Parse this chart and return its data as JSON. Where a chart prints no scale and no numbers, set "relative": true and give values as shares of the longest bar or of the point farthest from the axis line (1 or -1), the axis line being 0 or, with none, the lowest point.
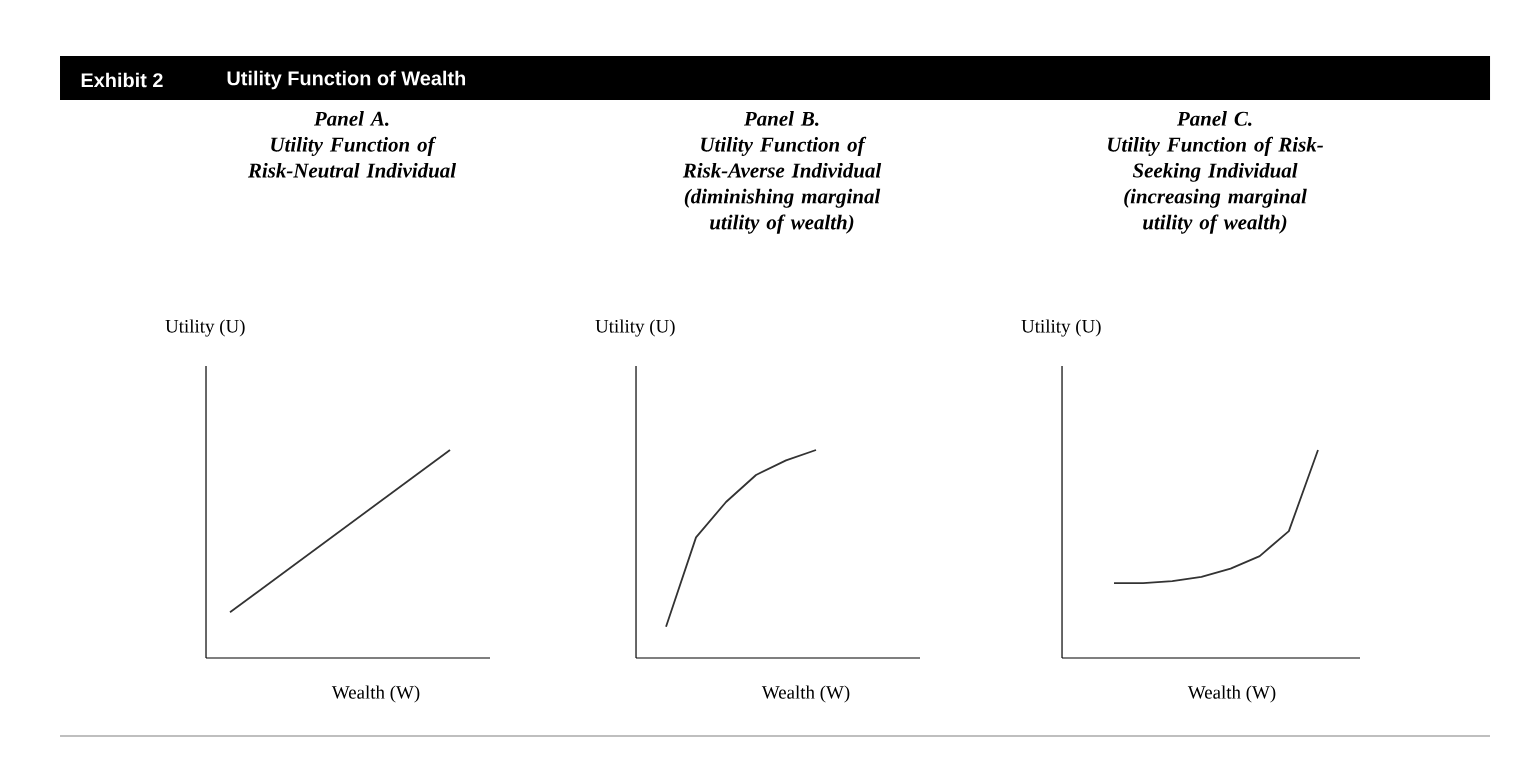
{
  "chart_data": [
    {
      "type": "line",
      "title": "Panel A.",
      "subtitle": "Utility Function of Risk-Neutral Individual",
      "xlabel": "Wealth (W)",
      "ylabel": "Utility (U)",
      "categories": [
        null,
        null
      ],
      "values": [
        0.22,
        1
      ],
      "color": "#333333",
      "relative": true,
      "annotations": [
        "Exhibit 2",
        "Utility Function of Wealth"
      ]
    },
    {
      "type": "line",
      "title": "Panel B.",
      "subtitle": "Utility Function of Risk-Averse Individual (diminishing marginal utility of wealth)",
      "xlabel": "Wealth (W)",
      "ylabel": "Utility (U)",
      "categories": [
        null,
        null,
        null,
        null,
        null,
        null
      ],
      "values": [
        0.15,
        0.58,
        0.75,
        0.88,
        0.95,
        1
      ],
      "color": "#333333",
      "relative": true
    },
    {
      "type": "line",
      "title": "Panel C.",
      "subtitle": "Utility Function of Risk-Seeking Individual (increasing marginal utility of wealth)",
      "xlabel": "Wealth (W)",
      "ylabel": "Utility (U)",
      "categories": [
        null,
        null,
        null,
        null,
        null,
        null,
        null,
        null
      ],
      "values": [
        0.36,
        0.36,
        0.37,
        0.39,
        0.43,
        0.49,
        0.61,
        1
      ],
      "color": "#333333",
      "relative": true
    }
  ]
}
